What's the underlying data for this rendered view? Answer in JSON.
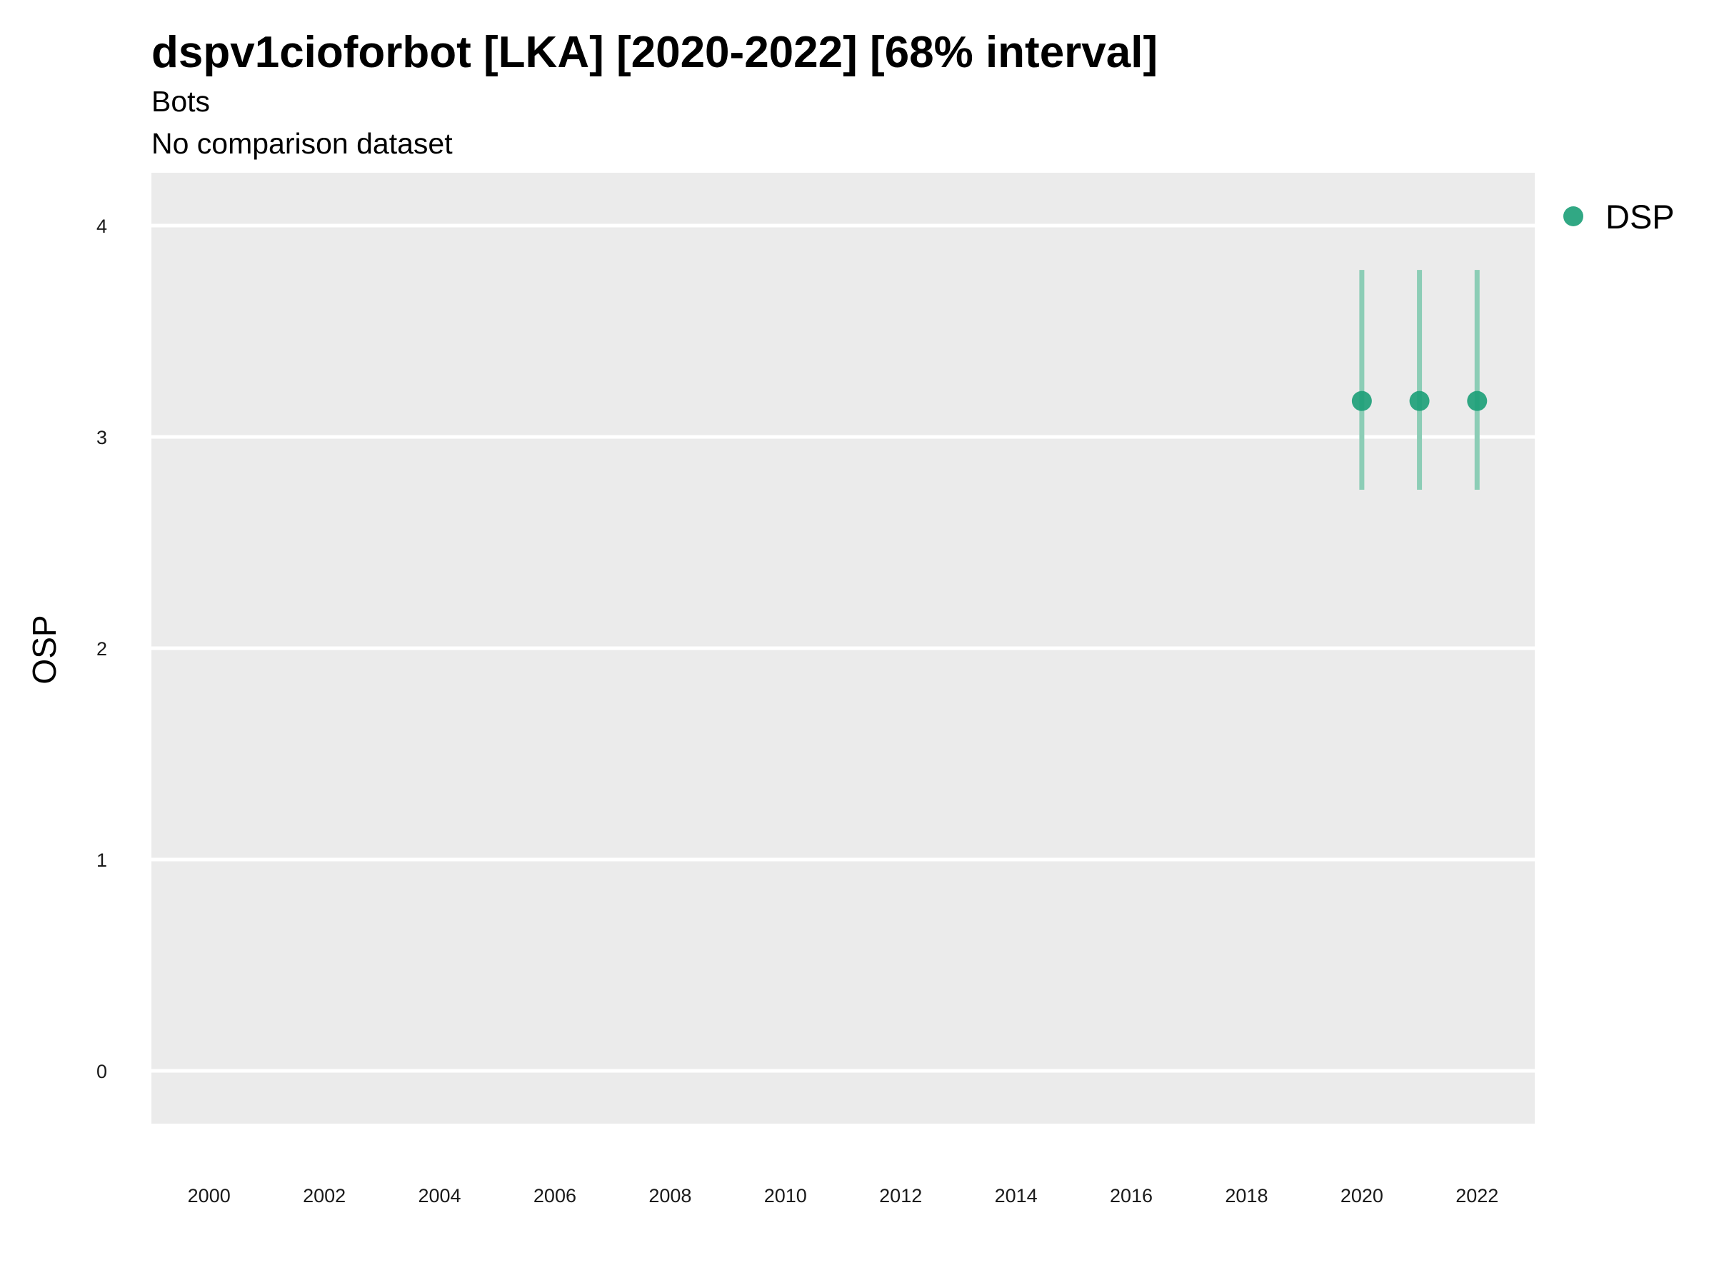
{
  "chart_data": {
    "type": "scatter",
    "title": "dspv1cioforbot [LKA] [2020-2022] [68% interval]",
    "subtitle": "Bots",
    "subtitle2": "No comparison dataset",
    "xlabel": "",
    "ylabel": "OSP",
    "xlim": [
      1999,
      2023
    ],
    "ylim": [
      -0.25,
      4.25
    ],
    "x_ticks": [
      "2000",
      "2002",
      "2004",
      "2006",
      "2008",
      "2010",
      "2012",
      "2014",
      "2016",
      "2018",
      "2020",
      "2022"
    ],
    "y_ticks": [
      "0",
      "1",
      "2",
      "3",
      "4"
    ],
    "grid": true,
    "legend_position": "top-right",
    "series": [
      {
        "name": "DSP",
        "color": "#1b9e77",
        "x": [
          2020,
          2021,
          2022
        ],
        "y": [
          3.17,
          3.17,
          3.17
        ],
        "lower": [
          2.75,
          2.75,
          2.75
        ],
        "upper": [
          3.79,
          3.79,
          3.79
        ]
      }
    ]
  },
  "colors": {
    "panel_background": "#ebebeb",
    "grid_line": "#ffffff",
    "point": "#1b9e77",
    "interval": "#8ccdb6"
  }
}
